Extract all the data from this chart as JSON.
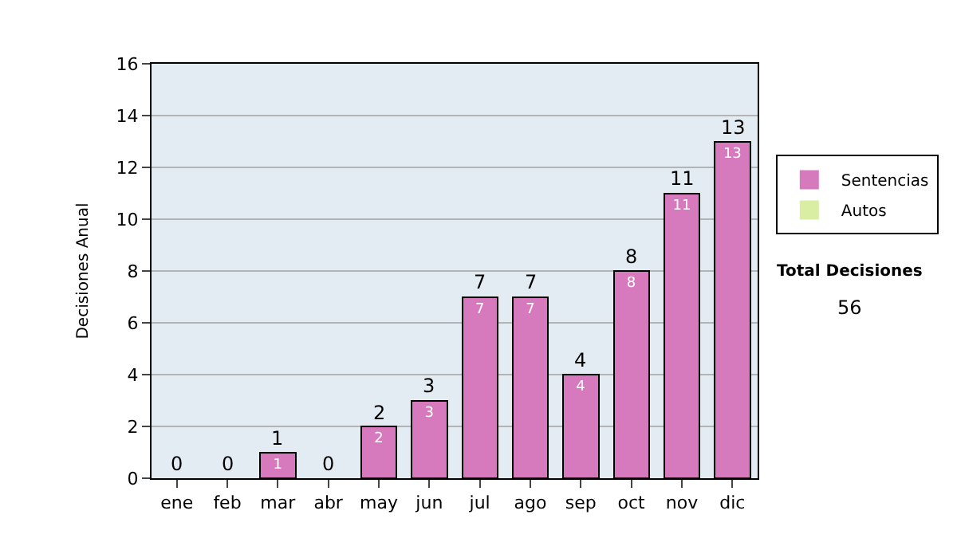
{
  "chart_data": {
    "type": "bar",
    "stacked": true,
    "ylabel": "Decisiones Anual",
    "categories": [
      "ene",
      "feb",
      "mar",
      "abr",
      "may",
      "jun",
      "jul",
      "ago",
      "sep",
      "oct",
      "nov",
      "dic"
    ],
    "series": [
      {
        "name": "Sentencias",
        "color": "#d67abd",
        "values": [
          0,
          0,
          1,
          0,
          2,
          3,
          7,
          7,
          4,
          8,
          11,
          13
        ],
        "value_labels": [
          null,
          null,
          "1",
          null,
          "2",
          "3",
          "7",
          "7",
          "4",
          "8",
          "11",
          "13"
        ]
      },
      {
        "name": "Autos",
        "color": "#d9eea2",
        "values": [
          0,
          0,
          0,
          0,
          0,
          0,
          0,
          0,
          0,
          0,
          0,
          0
        ]
      }
    ],
    "totals": [
      "0",
      "0",
      "1",
      "0",
      "2",
      "3",
      "7",
      "7",
      "4",
      "8",
      "11",
      "13"
    ],
    "ylim": [
      0,
      16
    ],
    "yticks": [
      0,
      2,
      4,
      6,
      8,
      10,
      12,
      14,
      16
    ],
    "grid": "y",
    "legend": "right",
    "annotations": [
      "Total Decisiones",
      "56"
    ]
  }
}
